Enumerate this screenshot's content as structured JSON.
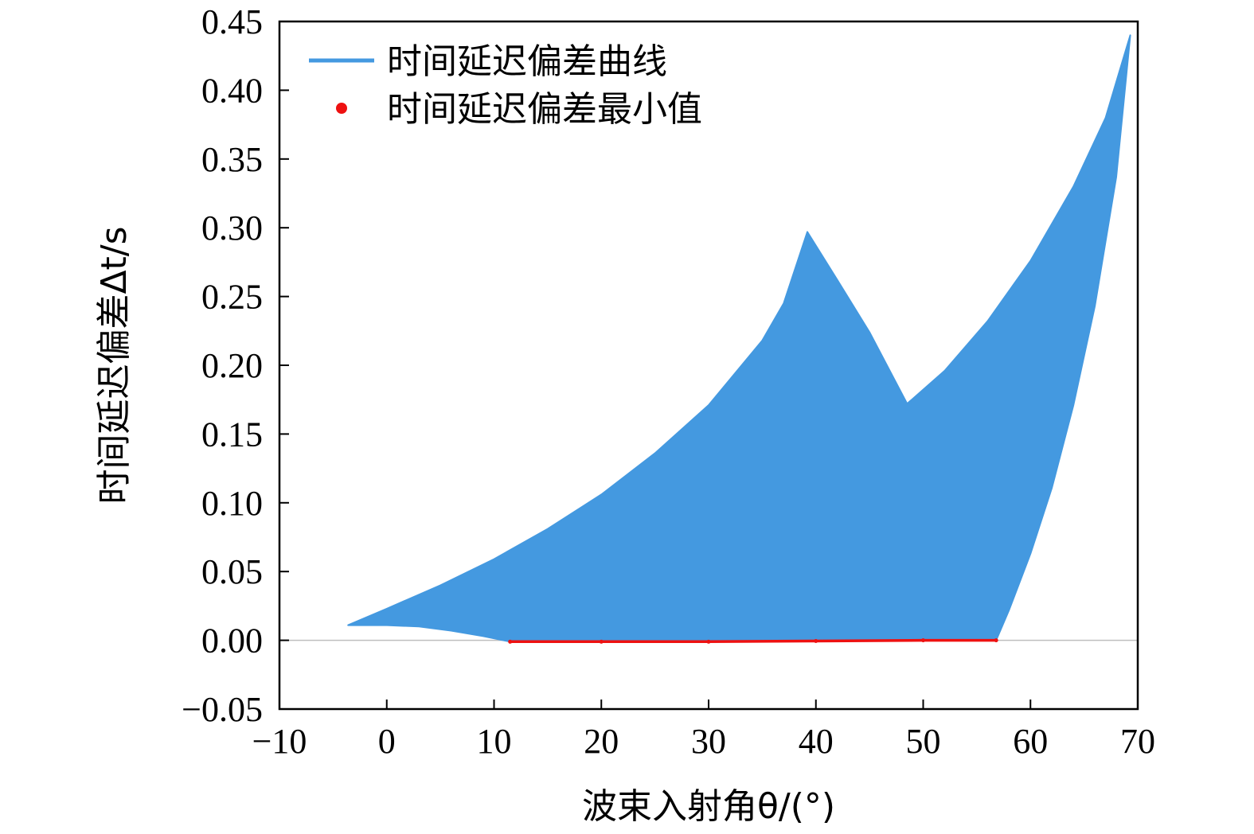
{
  "chart_data": {
    "type": "area",
    "xlabel": "波束入射角θ/(°)",
    "ylabel": "时间延迟偏差Δt/s",
    "xlim": [
      -10,
      70
    ],
    "ylim": [
      -0.05,
      0.45
    ],
    "x_ticks": [
      "−10",
      "0",
      "10",
      "20",
      "30",
      "40",
      "50",
      "60",
      "70"
    ],
    "y_ticks": [
      "−0.05",
      "0.00",
      "0.05",
      "0.10",
      "0.15",
      "0.20",
      "0.25",
      "0.30",
      "0.35",
      "0.40",
      "0.45"
    ],
    "x_tick_values": [
      -10,
      0,
      10,
      20,
      30,
      40,
      50,
      60,
      70
    ],
    "y_tick_values": [
      -0.05,
      0.0,
      0.05,
      0.1,
      0.15,
      0.2,
      0.25,
      0.3,
      0.35,
      0.4,
      0.45
    ],
    "legend_position": "top-left",
    "grid": false,
    "zero_line": true,
    "series": [
      {
        "name": "时间延迟偏差曲线",
        "color": "#4499e0",
        "upper": {
          "x": [
            -3.6,
            0,
            5,
            10,
            15,
            20,
            25,
            30,
            35,
            37,
            39.2,
            42,
            45,
            48.5,
            52,
            56,
            60,
            64,
            67,
            69.3
          ],
          "y": [
            0.011,
            0.023,
            0.04,
            0.059,
            0.081,
            0.106,
            0.136,
            0.171,
            0.218,
            0.245,
            0.297,
            0.262,
            0.224,
            0.172,
            0.196,
            0.232,
            0.276,
            0.33,
            0.38,
            0.44
          ]
        },
        "lower": {
          "x": [
            -3.6,
            -2,
            0,
            3,
            6,
            9,
            11.5,
            20,
            30,
            40,
            50,
            56.8,
            58,
            60,
            62,
            64,
            66,
            68,
            69.3
          ],
          "y": [
            0.011,
            0.011,
            0.011,
            0.01,
            0.007,
            0.003,
            -0.001,
            -0.001,
            -0.001,
            -0.0005,
            0.0,
            0.0,
            0.022,
            0.063,
            0.111,
            0.171,
            0.243,
            0.337,
            0.44
          ]
        }
      },
      {
        "name": "时间延迟偏差最小值",
        "color": "#ee1111",
        "x": [
          11.5,
          20,
          30,
          40,
          50,
          56.8
        ],
        "y": [
          -0.001,
          -0.001,
          -0.001,
          -0.0005,
          0.0,
          0.0
        ]
      }
    ]
  }
}
